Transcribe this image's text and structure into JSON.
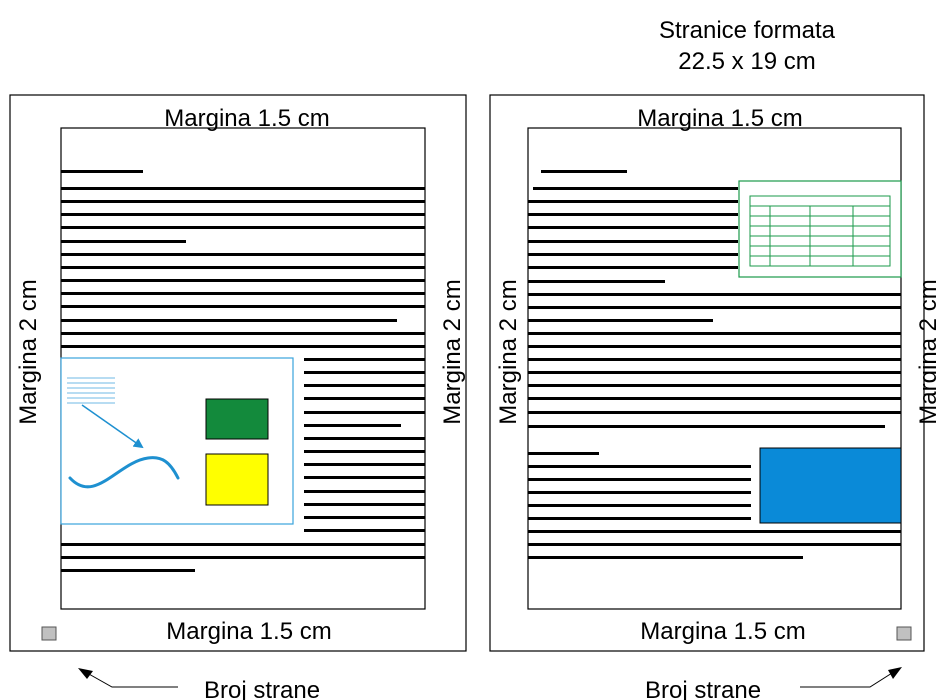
{
  "title": {
    "line1": "Stranice formata",
    "line2": "22.5 x 19 cm"
  },
  "left_page": {
    "margin_top": "Margina 1.5 cm",
    "margin_bottom": "Margina 1.5 cm",
    "margin_left": "Margina 2 cm",
    "margin_right": "Margina 2 cm",
    "page_number_label": "Broj strane"
  },
  "right_page": {
    "margin_top": "Margina 1.5 cm",
    "margin_bottom": "Margina 1.5 cm",
    "margin_left": "Margina 2 cm",
    "margin_right": "Margina 2 cm",
    "page_number_label": "Broj strane"
  },
  "colors": {
    "text_line": "#000000",
    "figure_frame": "#3aa3dc",
    "figure_curve": "#1e90d0",
    "green_box": "#138a3c",
    "yellow_box": "#ffff00",
    "table_frame": "#1a9a4a",
    "blue_box": "#0a8ad8",
    "page_number_box": "#c0c0c0"
  },
  "icons": {
    "page_number_left": "gray-square-icon",
    "page_number_right": "gray-square-icon",
    "arrow_left": "arrow-up-left-icon",
    "arrow_right": "arrow-up-right-icon"
  }
}
